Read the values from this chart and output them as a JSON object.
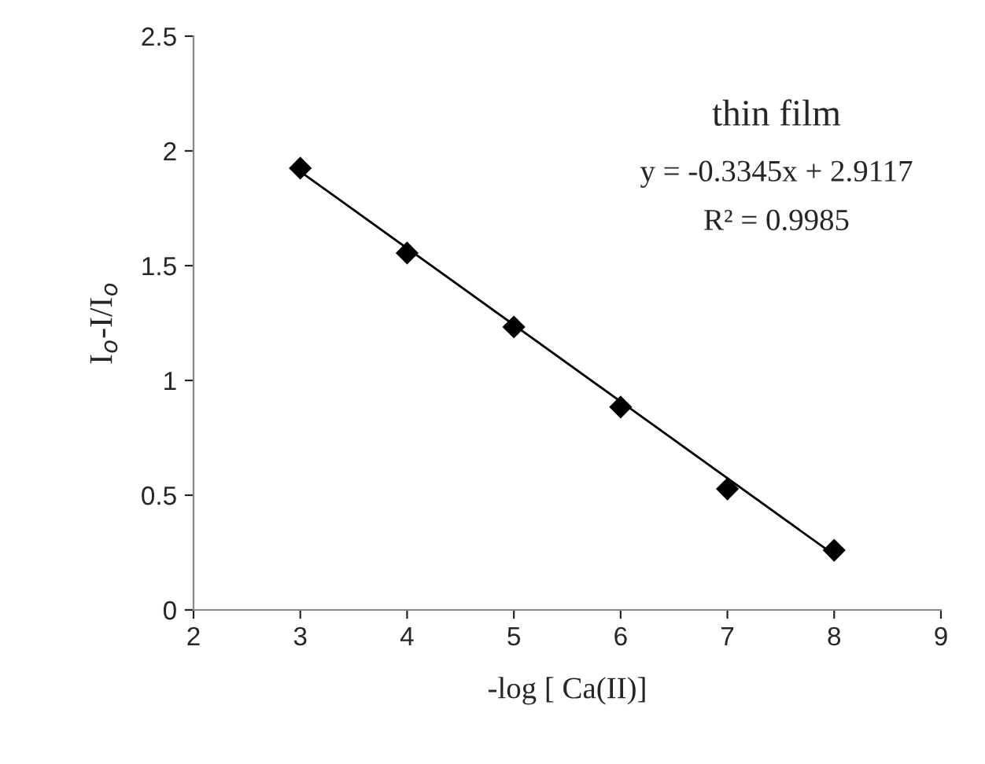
{
  "chart_data": {
    "type": "scatter",
    "xlabel": "-log [ Ca(II)]",
    "ylabel": "I$_{o}$-I/I$_{o}$",
    "xlim": [
      2,
      9
    ],
    "xticks": [
      2,
      3,
      4,
      5,
      6,
      7,
      8,
      9
    ],
    "ylim": [
      0,
      2.5
    ],
    "yticks": [
      0,
      0.5,
      1,
      1.5,
      2,
      2.5
    ],
    "grid": false,
    "legend": false,
    "series": [
      {
        "color": "#000000",
        "marker": "diamond",
        "x": [
          3,
          4,
          5,
          6,
          7,
          8
        ],
        "values": [
          1.925,
          1.555,
          1.233,
          0.884,
          0.527,
          0.26
        ]
      },
      {
        "type": "line",
        "color": "#000000",
        "line_style": "solid",
        "marker": "none",
        "x": [
          3,
          8
        ],
        "values": [
          1.91,
          0.24
        ]
      }
    ],
    "annotations": [
      "thin film",
      "y = -0.3345x + 2.9117",
      "R² = 0.9985"
    ]
  }
}
